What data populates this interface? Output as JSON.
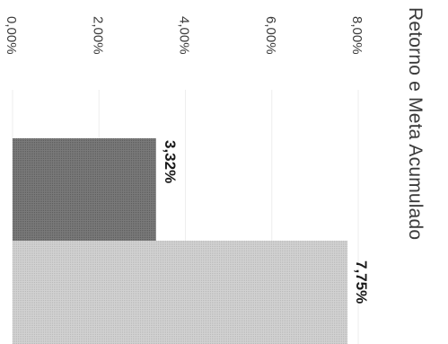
{
  "chart_data": {
    "type": "bar",
    "title": "Retorno e Meta Acumulado",
    "xlabel": "",
    "ylabel": "",
    "orientation": "rotated-90-clockwise",
    "categories": [
      "",
      ""
    ],
    "values": [
      3.32,
      7.75
    ],
    "data_labels": [
      "3,32%",
      "7,75%"
    ],
    "ylim": [
      0,
      8
    ],
    "y_ticks": [
      "0,00%",
      "2,00%",
      "4,00%",
      "6,00%",
      "8,00%"
    ],
    "grid": true,
    "legend": "none",
    "colors": {
      "bar_1": "#6e6e6e",
      "bar_2": "#c8c8c8",
      "text": "#3a3a3a",
      "grid": "#eeeeee"
    }
  }
}
